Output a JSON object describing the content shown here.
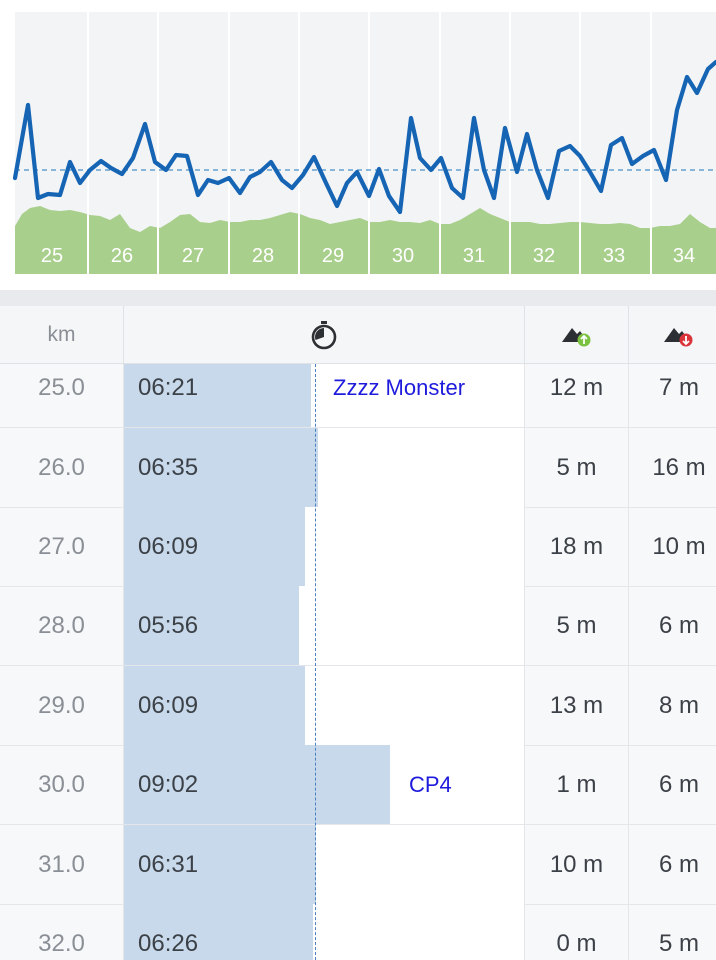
{
  "chart_data": {
    "type": "line",
    "km_labels": [
      "25",
      "26",
      "27",
      "28",
      "29",
      "30",
      "31",
      "32",
      "33",
      "34"
    ],
    "pace_line_color": "#1664b4",
    "elevation_fill_color": "#a9cf8c",
    "average_line_color": "#4a8fc8",
    "grid": true
  },
  "table": {
    "header": {
      "km_label": "km",
      "pace_icon": "stopwatch-icon",
      "ascent_icon": "ascent-icon",
      "descent_icon": "descent-icon"
    },
    "rows": [
      {
        "km": "25.0",
        "pace": "06:21",
        "ascent": "12 m",
        "descent": "7 m",
        "note": "Zzzz Monster",
        "pace_seconds": 381
      },
      {
        "km": "26.0",
        "pace": "06:35",
        "ascent": "5 m",
        "descent": "16 m",
        "note": "",
        "pace_seconds": 395
      },
      {
        "km": "27.0",
        "pace": "06:09",
        "ascent": "18 m",
        "descent": "10 m",
        "note": "",
        "pace_seconds": 369
      },
      {
        "km": "28.0",
        "pace": "05:56",
        "ascent": "5 m",
        "descent": "6 m",
        "note": "",
        "pace_seconds": 356
      },
      {
        "km": "29.0",
        "pace": "06:09",
        "ascent": "13 m",
        "descent": "8 m",
        "note": "",
        "pace_seconds": 369
      },
      {
        "km": "30.0",
        "pace": "09:02",
        "ascent": "1 m",
        "descent": "6 m",
        "note": "CP4",
        "pace_seconds": 542
      },
      {
        "km": "31.0",
        "pace": "06:31",
        "ascent": "10 m",
        "descent": "6 m",
        "note": "",
        "pace_seconds": 391
      },
      {
        "km": "32.0",
        "pace": "06:26",
        "ascent": "0 m",
        "descent": "5 m",
        "note": "",
        "pace_seconds": 386
      }
    ],
    "colors": {
      "pace_bar": "#c7d9ea",
      "note_text": "#1f1bdc",
      "ascent_badge": "#7cc242",
      "descent_badge": "#d9343a"
    }
  }
}
